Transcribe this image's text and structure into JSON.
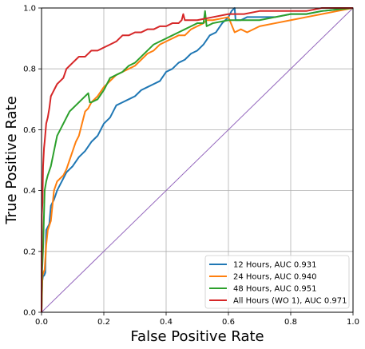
{
  "chart_data": {
    "type": "line",
    "title": "",
    "xlabel": "False Positive Rate",
    "ylabel": "True Positive Rate",
    "xlim": [
      0,
      1
    ],
    "ylim": [
      0,
      1
    ],
    "xticks": [
      "0.0",
      "0.2",
      "0.4",
      "0.6",
      "0.8",
      "1.0"
    ],
    "yticks": [
      "0.0",
      "0.2",
      "0.4",
      "0.6",
      "0.8",
      "1.0"
    ],
    "grid": true,
    "legend_position": "lower-right",
    "reference_line": {
      "x": [
        0,
        1
      ],
      "y": [
        0,
        1
      ],
      "color": "#9467bd"
    },
    "series": [
      {
        "name": "12 Hours, AUC 0.931",
        "color": "#1f77b4",
        "x": [
          0,
          0.002,
          0.005,
          0.008,
          0.012,
          0.015,
          0.02,
          0.025,
          0.03,
          0.04,
          0.05,
          0.06,
          0.07,
          0.08,
          0.09,
          0.1,
          0.12,
          0.14,
          0.16,
          0.18,
          0.2,
          0.22,
          0.24,
          0.26,
          0.28,
          0.3,
          0.32,
          0.34,
          0.36,
          0.38,
          0.4,
          0.42,
          0.44,
          0.46,
          0.48,
          0.5,
          0.52,
          0.54,
          0.56,
          0.58,
          0.6,
          0.61,
          0.62,
          0.623,
          0.64,
          0.66,
          0.7,
          0.75,
          0.8,
          0.85,
          0.9,
          0.95,
          1.0
        ],
        "y": [
          0,
          0.1,
          0.12,
          0.12,
          0.13,
          0.27,
          0.28,
          0.29,
          0.35,
          0.37,
          0.4,
          0.42,
          0.44,
          0.46,
          0.47,
          0.48,
          0.51,
          0.53,
          0.56,
          0.58,
          0.62,
          0.64,
          0.68,
          0.69,
          0.7,
          0.71,
          0.73,
          0.74,
          0.75,
          0.76,
          0.79,
          0.8,
          0.82,
          0.83,
          0.85,
          0.86,
          0.88,
          0.91,
          0.92,
          0.95,
          0.97,
          0.99,
          1.0,
          0.96,
          0.96,
          0.97,
          0.97,
          0.97,
          0.98,
          0.98,
          0.99,
          0.995,
          1.0
        ]
      },
      {
        "name": "24 Hours, AUC 0.940",
        "color": "#ff7f0e",
        "x": [
          0,
          0.003,
          0.006,
          0.01,
          0.015,
          0.02,
          0.03,
          0.04,
          0.05,
          0.06,
          0.07,
          0.08,
          0.09,
          0.1,
          0.11,
          0.12,
          0.13,
          0.14,
          0.15,
          0.16,
          0.18,
          0.2,
          0.22,
          0.24,
          0.26,
          0.28,
          0.3,
          0.32,
          0.34,
          0.36,
          0.38,
          0.4,
          0.42,
          0.44,
          0.46,
          0.48,
          0.5,
          0.52,
          0.53,
          0.55,
          0.6,
          0.62,
          0.64,
          0.66,
          0.7,
          0.75,
          0.8,
          0.85,
          0.9,
          0.95,
          1.0
        ],
        "y": [
          0,
          0.12,
          0.13,
          0.14,
          0.22,
          0.27,
          0.3,
          0.4,
          0.43,
          0.44,
          0.45,
          0.47,
          0.5,
          0.53,
          0.56,
          0.58,
          0.62,
          0.66,
          0.67,
          0.69,
          0.71,
          0.74,
          0.76,
          0.78,
          0.79,
          0.8,
          0.81,
          0.83,
          0.85,
          0.86,
          0.88,
          0.89,
          0.9,
          0.91,
          0.91,
          0.93,
          0.94,
          0.95,
          0.96,
          0.96,
          0.97,
          0.92,
          0.93,
          0.92,
          0.94,
          0.95,
          0.96,
          0.97,
          0.98,
          0.99,
          1.0
        ]
      },
      {
        "name": "48 Hours, AUC 0.951",
        "color": "#2ca02c",
        "x": [
          0,
          0.002,
          0.005,
          0.01,
          0.015,
          0.02,
          0.03,
          0.04,
          0.05,
          0.06,
          0.07,
          0.08,
          0.09,
          0.1,
          0.11,
          0.12,
          0.13,
          0.14,
          0.15,
          0.155,
          0.16,
          0.18,
          0.2,
          0.22,
          0.24,
          0.26,
          0.28,
          0.3,
          0.32,
          0.34,
          0.36,
          0.38,
          0.4,
          0.42,
          0.44,
          0.46,
          0.48,
          0.5,
          0.52,
          0.525,
          0.53,
          0.55,
          0.6,
          0.65,
          0.7,
          0.75,
          0.8,
          0.85,
          0.9,
          0.95,
          1.0
        ],
        "y": [
          0,
          0.14,
          0.21,
          0.4,
          0.43,
          0.45,
          0.48,
          0.53,
          0.58,
          0.6,
          0.62,
          0.64,
          0.66,
          0.67,
          0.68,
          0.69,
          0.7,
          0.71,
          0.72,
          0.69,
          0.69,
          0.7,
          0.73,
          0.77,
          0.78,
          0.79,
          0.81,
          0.82,
          0.84,
          0.86,
          0.88,
          0.89,
          0.9,
          0.91,
          0.92,
          0.93,
          0.94,
          0.95,
          0.95,
          0.99,
          0.94,
          0.95,
          0.96,
          0.96,
          0.96,
          0.97,
          0.98,
          0.98,
          0.99,
          0.995,
          1.0
        ]
      },
      {
        "name": "All Hours (WO 1), AUC 0.971",
        "color": "#d62728",
        "x": [
          0,
          0.001,
          0.003,
          0.005,
          0.008,
          0.01,
          0.015,
          0.02,
          0.025,
          0.03,
          0.035,
          0.04,
          0.05,
          0.06,
          0.07,
          0.08,
          0.09,
          0.1,
          0.11,
          0.12,
          0.14,
          0.16,
          0.18,
          0.2,
          0.22,
          0.24,
          0.26,
          0.28,
          0.3,
          0.32,
          0.34,
          0.36,
          0.38,
          0.4,
          0.42,
          0.44,
          0.45,
          0.455,
          0.46,
          0.5,
          0.55,
          0.6,
          0.62,
          0.65,
          0.7,
          0.75,
          0.8,
          0.85,
          0.9,
          0.95,
          1.0
        ],
        "y": [
          0,
          0.32,
          0.36,
          0.48,
          0.54,
          0.56,
          0.62,
          0.64,
          0.67,
          0.71,
          0.72,
          0.73,
          0.75,
          0.76,
          0.77,
          0.8,
          0.81,
          0.82,
          0.83,
          0.84,
          0.84,
          0.86,
          0.86,
          0.87,
          0.88,
          0.89,
          0.91,
          0.91,
          0.92,
          0.92,
          0.93,
          0.93,
          0.94,
          0.94,
          0.95,
          0.95,
          0.96,
          0.98,
          0.96,
          0.96,
          0.97,
          0.98,
          0.98,
          0.98,
          0.99,
          0.99,
          0.99,
          0.99,
          1.0,
          1.0,
          1.0
        ]
      }
    ]
  }
}
